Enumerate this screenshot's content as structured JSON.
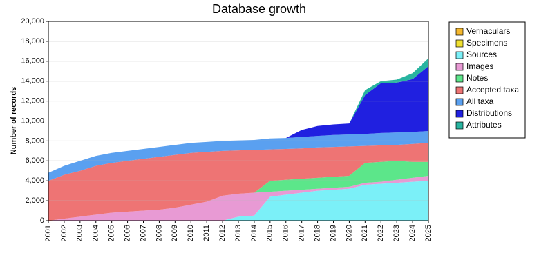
{
  "chart_data": {
    "type": "stacked_area",
    "title": "Database growth",
    "y_label": "Number of records",
    "categories": [
      "2001",
      "2002",
      "2003",
      "2004",
      "2005",
      "2006",
      "2007",
      "2008",
      "2009",
      "2010",
      "2011",
      "2012",
      "2013",
      "2014",
      "2015",
      "2016",
      "2017",
      "2018",
      "2019",
      "2020",
      "2021",
      "2022",
      "2023",
      "2024",
      "2025"
    ],
    "series": [
      {
        "name": "Vernaculars",
        "color": "#f5b82e",
        "values": [
          0,
          0,
          0,
          0,
          0,
          0,
          0,
          0,
          0,
          0,
          0,
          0,
          0,
          0,
          0,
          0,
          0,
          0,
          0,
          0,
          0,
          0,
          0,
          0,
          0
        ]
      },
      {
        "name": "Specimens",
        "color": "#f0e030",
        "values": [
          0,
          0,
          0,
          0,
          0,
          0,
          0,
          0,
          0,
          0,
          0,
          0,
          0,
          0,
          0,
          0,
          0,
          0,
          0,
          0,
          0,
          0,
          0,
          0,
          0
        ]
      },
      {
        "name": "Sources",
        "color": "#7bf0f8",
        "values": [
          0,
          0,
          0,
          0,
          0,
          0,
          0,
          0,
          0,
          0,
          0,
          0,
          400,
          500,
          2400,
          2600,
          2800,
          3000,
          3100,
          3200,
          3600,
          3700,
          3800,
          3900,
          4000
        ]
      },
      {
        "name": "Images",
        "color": "#e89ad4",
        "values": [
          0,
          200,
          400,
          600,
          800,
          900,
          1000,
          1100,
          1300,
          1600,
          1900,
          2500,
          2300,
          2300,
          500,
          400,
          300,
          200,
          200,
          200,
          200,
          200,
          300,
          400,
          500
        ]
      },
      {
        "name": "Notes",
        "color": "#5ce68a",
        "values": [
          0,
          0,
          0,
          0,
          0,
          0,
          0,
          0,
          0,
          0,
          0,
          0,
          0,
          0,
          1100,
          1100,
          1100,
          1100,
          1100,
          1100,
          2000,
          2000,
          1900,
          1600,
          1400
        ]
      },
      {
        "name": "Accepted taxa",
        "color": "#ee7474",
        "values": [
          4000,
          4400,
          4600,
          4900,
          5000,
          5100,
          5200,
          5300,
          5300,
          5200,
          5000,
          4500,
          4350,
          4300,
          3150,
          3100,
          3050,
          3050,
          3000,
          2950,
          1700,
          1650,
          1600,
          1800,
          1900
        ]
      },
      {
        "name": "All taxa",
        "color": "#5aa0f0",
        "values": [
          800,
          900,
          1000,
          1000,
          1000,
          1000,
          1000,
          1000,
          1000,
          1000,
          1000,
          1000,
          1000,
          1000,
          1100,
          1100,
          1150,
          1150,
          1200,
          1200,
          1200,
          1250,
          1250,
          1200,
          1200
        ]
      },
      {
        "name": "Distributions",
        "color": "#2020e0",
        "values": [
          0,
          0,
          0,
          0,
          0,
          0,
          0,
          0,
          0,
          0,
          0,
          0,
          0,
          0,
          0,
          0,
          700,
          1000,
          1050,
          1100,
          3900,
          5000,
          5000,
          5300,
          6500
        ]
      },
      {
        "name": "Attributes",
        "color": "#28b4a0",
        "values": [
          0,
          0,
          0,
          0,
          0,
          0,
          0,
          0,
          0,
          0,
          0,
          0,
          0,
          0,
          0,
          0,
          0,
          0,
          0,
          0,
          500,
          200,
          300,
          600,
          800
        ]
      }
    ],
    "ylim": [
      0,
      20000
    ],
    "yticks": [
      0,
      {
        "value": 2000,
        "label": "2,000"
      },
      {
        "value": 4000,
        "label": "4,000"
      },
      {
        "value": 6000,
        "label": "6,000"
      },
      {
        "value": 8000,
        "label": "8,000"
      },
      {
        "value": 10000,
        "label": "10,000"
      },
      {
        "value": 12000,
        "label": "12,000"
      },
      {
        "value": 14000,
        "label": "14,000"
      },
      {
        "value": 16000,
        "label": "16,000"
      },
      {
        "value": 18000,
        "label": "18,000"
      },
      {
        "value": 20000,
        "label": "20,000"
      }
    ],
    "grid": true,
    "legend": "right"
  }
}
